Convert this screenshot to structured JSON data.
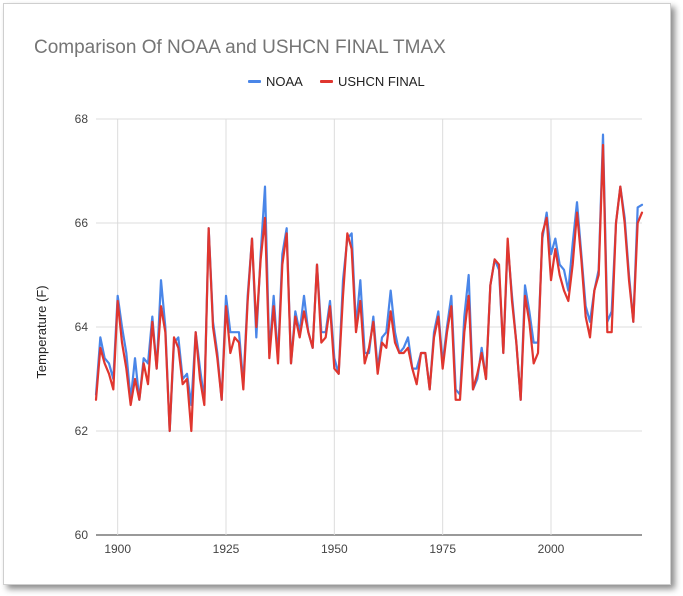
{
  "chart_data": {
    "type": "line",
    "title": "Comparison Of NOAA and USHCN FINAL TMAX",
    "xlabel": "",
    "ylabel": "Temperature (F)",
    "xlim": [
      1895,
      2021
    ],
    "ylim": [
      60,
      68
    ],
    "x_ticks": [
      1900,
      1925,
      1950,
      1975,
      2000
    ],
    "y_ticks": [
      60,
      62,
      64,
      66,
      68
    ],
    "grid": true,
    "legend_position": "top",
    "x": [
      1895,
      1896,
      1897,
      1898,
      1899,
      1900,
      1901,
      1902,
      1903,
      1904,
      1905,
      1906,
      1907,
      1908,
      1909,
      1910,
      1911,
      1912,
      1913,
      1914,
      1915,
      1916,
      1917,
      1918,
      1919,
      1920,
      1921,
      1922,
      1923,
      1924,
      1925,
      1926,
      1927,
      1928,
      1929,
      1930,
      1931,
      1932,
      1933,
      1934,
      1935,
      1936,
      1937,
      1938,
      1939,
      1940,
      1941,
      1942,
      1943,
      1944,
      1945,
      1946,
      1947,
      1948,
      1949,
      1950,
      1951,
      1952,
      1953,
      1954,
      1955,
      1956,
      1957,
      1958,
      1959,
      1960,
      1961,
      1962,
      1963,
      1964,
      1965,
      1966,
      1967,
      1968,
      1969,
      1970,
      1971,
      1972,
      1973,
      1974,
      1975,
      1976,
      1977,
      1978,
      1979,
      1980,
      1981,
      1982,
      1983,
      1984,
      1985,
      1986,
      1987,
      1988,
      1989,
      1990,
      1991,
      1992,
      1993,
      1994,
      1995,
      1996,
      1997,
      1998,
      1999,
      2000,
      2001,
      2002,
      2003,
      2004,
      2005,
      2006,
      2007,
      2008,
      2009,
      2010,
      2011,
      2012,
      2013,
      2014,
      2015,
      2016,
      2017,
      2018,
      2019,
      2020,
      2021
    ],
    "series": [
      {
        "name": "NOAA",
        "color": "#4a86e8",
        "values": [
          62.7,
          63.8,
          63.4,
          63.3,
          63.0,
          64.6,
          64.0,
          63.5,
          62.6,
          63.4,
          62.6,
          63.4,
          63.3,
          64.2,
          63.2,
          64.9,
          64.0,
          62.0,
          63.7,
          63.8,
          63.0,
          63.1,
          62.5,
          63.9,
          63.2,
          62.6,
          65.9,
          64.1,
          63.5,
          62.6,
          64.6,
          63.9,
          63.9,
          63.9,
          62.9,
          64.6,
          65.7,
          63.8,
          65.4,
          66.7,
          63.5,
          64.6,
          63.4,
          65.4,
          65.9,
          63.3,
          64.3,
          63.9,
          64.6,
          63.9,
          63.6,
          65.2,
          63.9,
          63.9,
          64.5,
          63.4,
          63.1,
          64.9,
          65.7,
          65.8,
          64.0,
          64.9,
          63.5,
          63.5,
          64.2,
          63.2,
          63.8,
          63.9,
          64.7,
          63.9,
          63.5,
          63.6,
          63.8,
          63.2,
          63.2,
          63.5,
          63.5,
          62.8,
          63.9,
          64.3,
          63.3,
          64.0,
          64.6,
          62.8,
          62.7,
          64.2,
          65.0,
          62.8,
          63.0,
          63.6,
          63.0,
          64.8,
          65.3,
          65.1,
          63.5,
          65.6,
          64.6,
          63.7,
          62.6,
          64.8,
          64.3,
          63.7,
          63.7,
          65.7,
          66.2,
          65.4,
          65.7,
          65.2,
          65.1,
          64.7,
          65.6,
          66.4,
          65.4,
          64.4,
          64.1,
          64.7,
          65.1,
          67.7,
          64.1,
          64.3,
          66.0,
          66.7,
          66.1,
          65.0,
          64.1,
          66.3,
          66.35
        ]
      },
      {
        "name": "USHCN FINAL",
        "color": "#e0362f",
        "values": [
          62.6,
          63.6,
          63.3,
          63.1,
          62.8,
          64.5,
          63.7,
          63.2,
          62.5,
          63.0,
          62.6,
          63.3,
          62.9,
          64.1,
          63.2,
          64.4,
          63.9,
          62.0,
          63.8,
          63.6,
          62.9,
          63.0,
          62.0,
          63.9,
          63.0,
          62.5,
          65.9,
          64.0,
          63.4,
          62.6,
          64.4,
          63.5,
          63.8,
          63.7,
          62.8,
          64.5,
          65.7,
          64.0,
          65.3,
          66.1,
          63.4,
          64.4,
          63.3,
          65.2,
          65.8,
          63.3,
          64.2,
          63.8,
          64.3,
          63.9,
          63.6,
          65.2,
          63.7,
          63.8,
          64.4,
          63.2,
          63.1,
          64.6,
          65.8,
          65.5,
          63.9,
          64.5,
          63.3,
          63.6,
          64.1,
          63.1,
          63.7,
          63.6,
          64.3,
          63.7,
          63.5,
          63.5,
          63.6,
          63.2,
          62.9,
          63.5,
          63.5,
          62.8,
          63.8,
          64.2,
          63.2,
          63.9,
          64.4,
          62.6,
          62.6,
          63.9,
          64.6,
          62.8,
          63.1,
          63.5,
          63.0,
          64.8,
          65.3,
          65.2,
          63.5,
          65.7,
          64.5,
          63.7,
          62.6,
          64.6,
          64.1,
          63.3,
          63.5,
          65.8,
          66.1,
          64.9,
          65.5,
          65.0,
          64.7,
          64.5,
          65.2,
          66.2,
          65.3,
          64.2,
          63.8,
          64.7,
          65.0,
          67.5,
          63.9,
          63.9,
          66.0,
          66.7,
          66.0,
          64.9,
          64.1,
          66.0,
          66.2
        ]
      }
    ]
  }
}
